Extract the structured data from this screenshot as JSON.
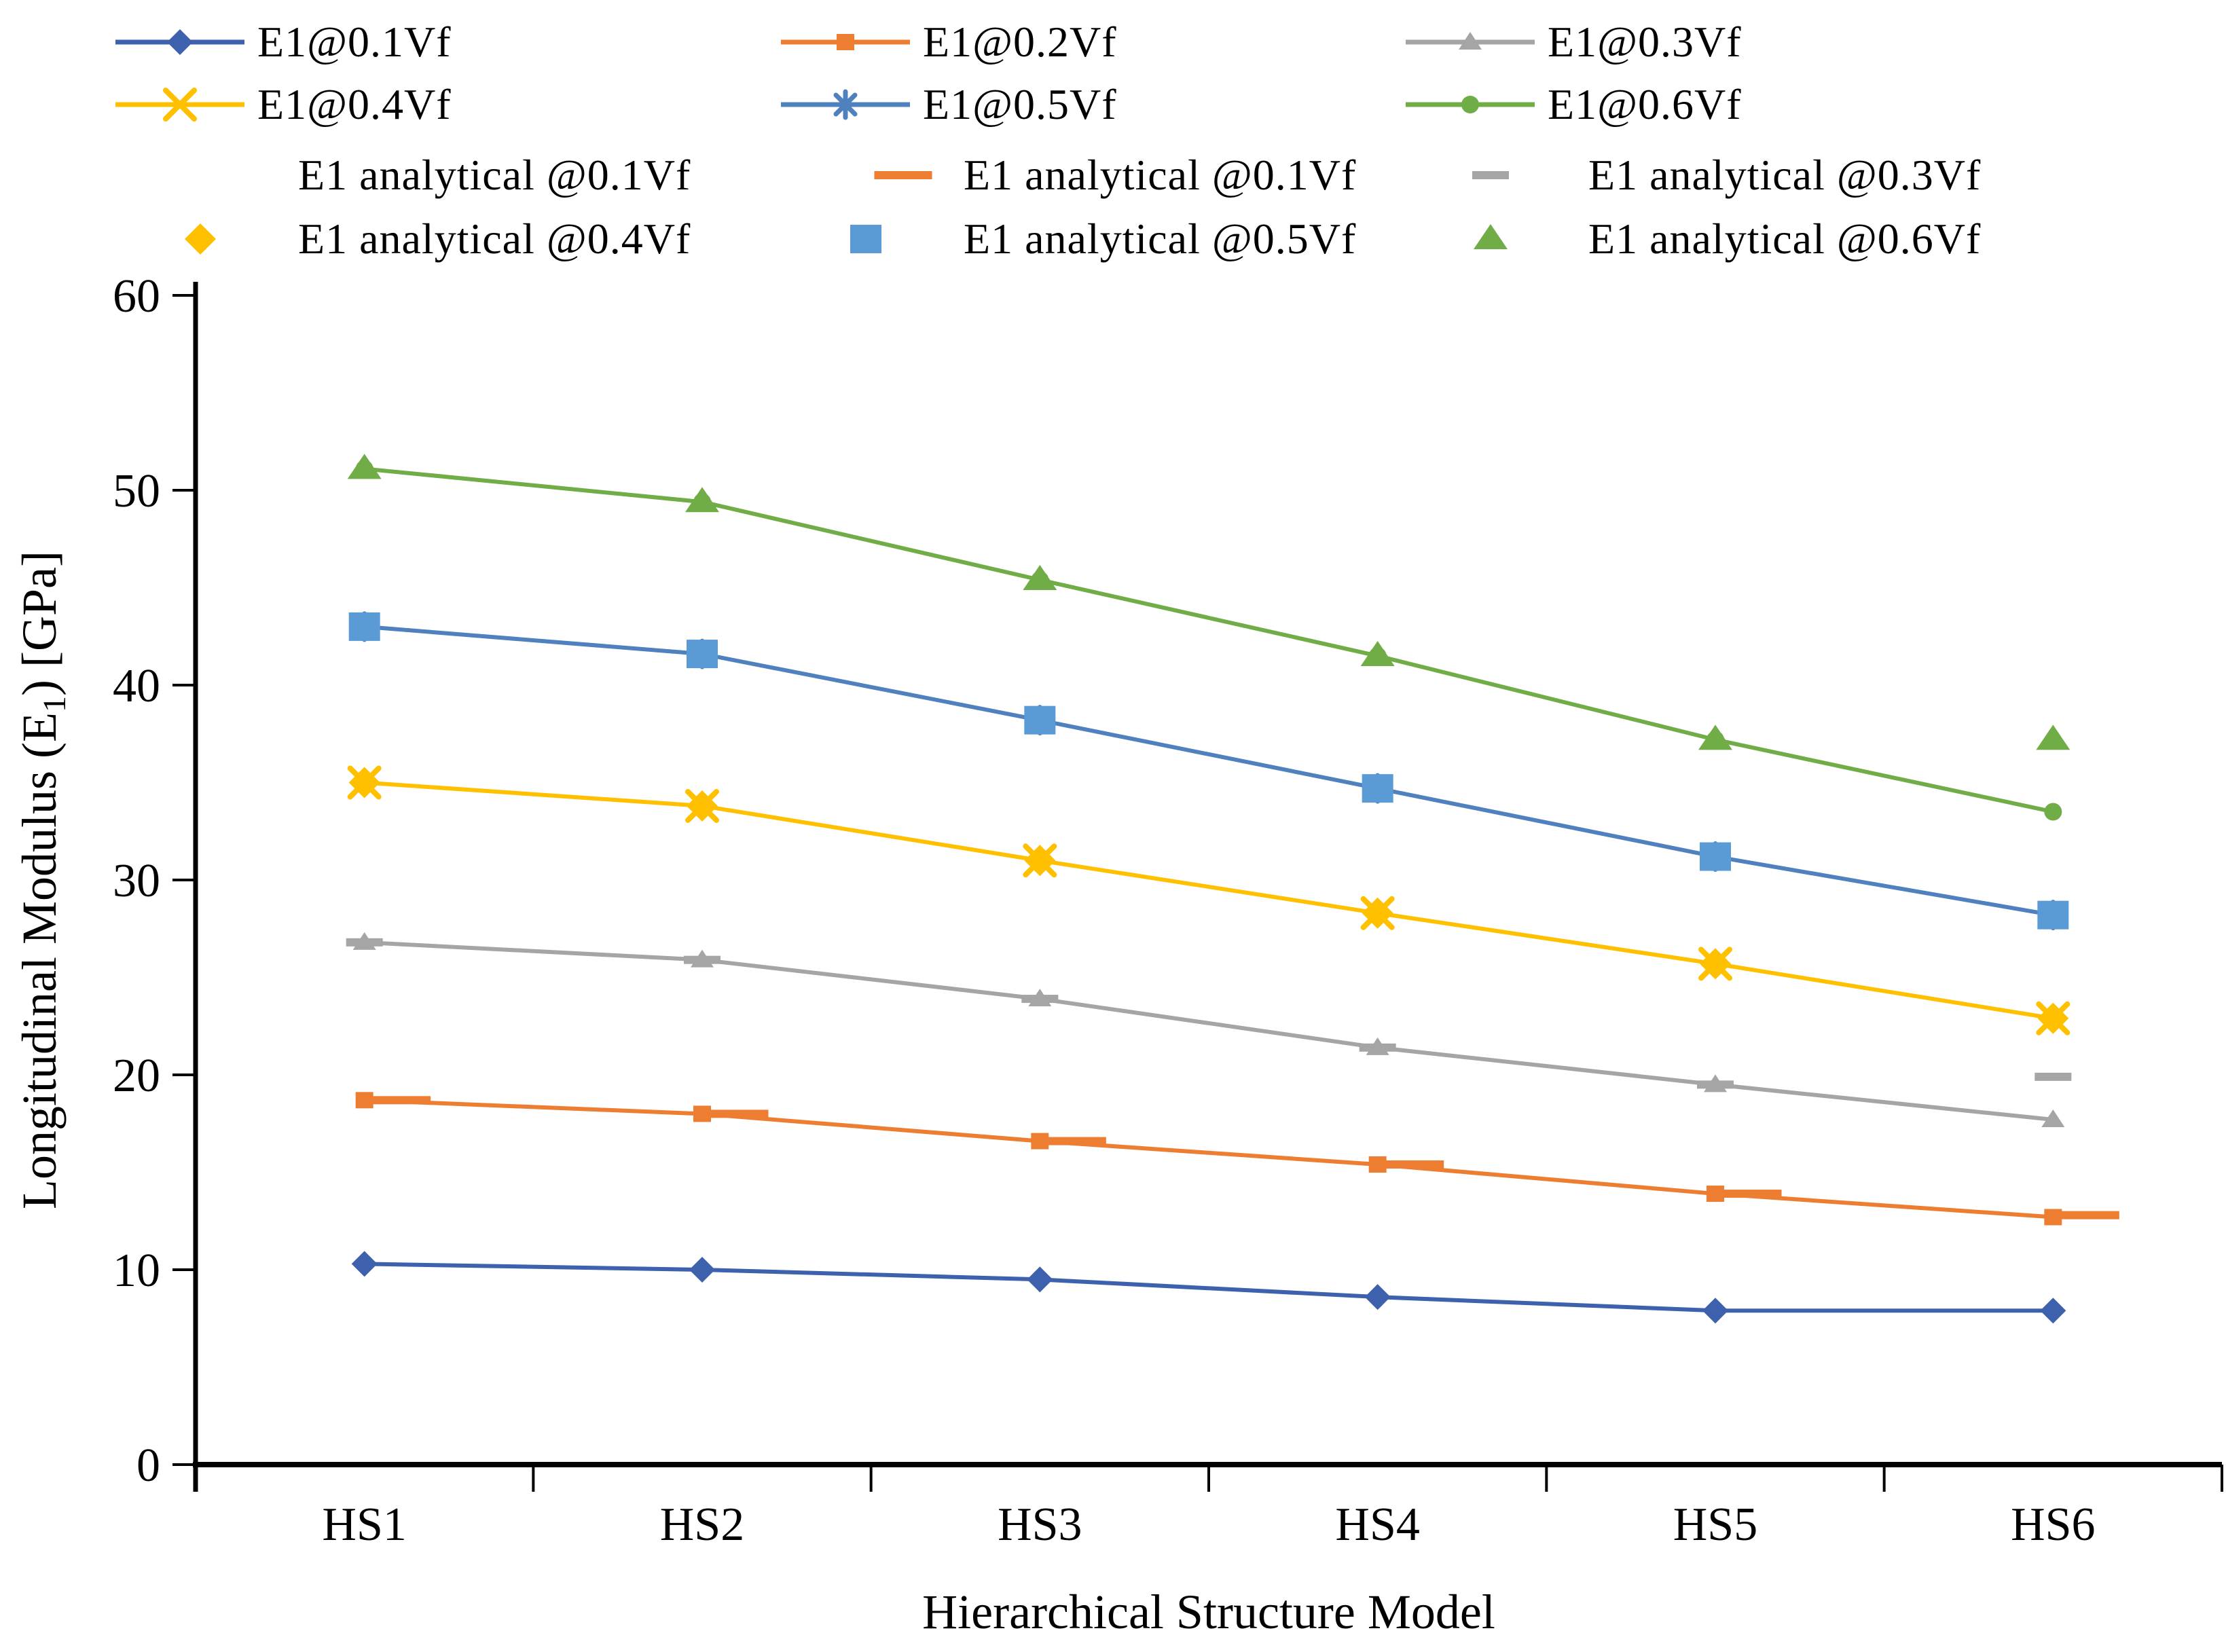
{
  "chart_data": {
    "type": "line",
    "title": "",
    "xlabel": "Hierarchical Structure Model",
    "ylabel": "Longitudinal Modulus (E1) [GPa]",
    "ylabel_parts": {
      "pre": "Longitudinal Modulus (E",
      "sub": "1",
      "post": ") [GPa]"
    },
    "categories": [
      "HS1",
      "HS2",
      "HS3",
      "HS4",
      "HS5",
      "HS6"
    ],
    "ylim": [
      0,
      60
    ],
    "ytick_step": 10,
    "ytick_labels": [
      "0",
      "10",
      "20",
      "30",
      "40",
      "50",
      "60"
    ],
    "grid": false,
    "legend_position": "top",
    "series": [
      {
        "name": "E1@0.1Vf",
        "kind": "fe",
        "type": "line",
        "color": "#3E61AD",
        "marker": "diamond",
        "values": [
          10.3,
          10.0,
          9.5,
          8.6,
          7.9,
          7.9
        ]
      },
      {
        "name": "E1@0.2Vf",
        "kind": "fe",
        "type": "line",
        "color": "#ED7D31",
        "marker": "square",
        "values": [
          18.7,
          18.0,
          16.6,
          15.4,
          13.9,
          12.7
        ]
      },
      {
        "name": "E1@0.3Vf",
        "kind": "fe",
        "type": "line",
        "color": "#A5A5A5",
        "marker": "triangle",
        "values": [
          26.8,
          25.9,
          23.9,
          21.4,
          19.5,
          17.7
        ]
      },
      {
        "name": "E1@0.4Vf",
        "kind": "fe",
        "type": "line",
        "color": "#FFC000",
        "marker": "x",
        "values": [
          35.0,
          33.8,
          31.0,
          28.3,
          25.7,
          22.9
        ]
      },
      {
        "name": "E1@0.5Vf",
        "kind": "fe",
        "type": "line",
        "color": "#4E81BD",
        "marker": "asterisk",
        "values": [
          43.0,
          41.6,
          38.2,
          34.7,
          31.2,
          28.2
        ]
      },
      {
        "name": "E1@0.6Vf",
        "kind": "fe",
        "type": "line",
        "color": "#70AD47",
        "marker": "circle",
        "values": [
          51.1,
          49.4,
          45.4,
          41.5,
          37.2,
          33.5
        ]
      },
      {
        "name": "E1 analytical @0.1Vf",
        "kind": "analytical",
        "type": "markers",
        "color": "#FFFFFF",
        "marker": "none",
        "values": [
          10.3,
          10.0,
          9.5,
          8.6,
          7.9,
          7.9
        ]
      },
      {
        "name": "E1 analytical @0.1Vf",
        "kind": "analytical",
        "type": "markers",
        "color": "#ED7D31",
        "marker": "dash",
        "dash_w": 85,
        "dash_dx": 55,
        "values": [
          18.7,
          18.0,
          16.6,
          15.4,
          13.9,
          12.8
        ]
      },
      {
        "name": "E1 analytical @0.3Vf",
        "kind": "analytical",
        "type": "markers",
        "color": "#A5A5A5",
        "marker": "dash",
        "dash_w": 54,
        "dash_dx": 0,
        "values": [
          26.8,
          25.9,
          23.9,
          21.4,
          19.5,
          19.9
        ]
      },
      {
        "name": "E1 analytical @0.4Vf",
        "kind": "analytical",
        "type": "markers",
        "color": "#FFC000",
        "marker": "diamond",
        "values": [
          35.0,
          33.8,
          31.0,
          28.3,
          25.7,
          22.9
        ]
      },
      {
        "name": "E1 analytical @0.5Vf",
        "kind": "analytical",
        "type": "markers",
        "color": "#5B9BD5",
        "marker": "square",
        "values": [
          43.0,
          41.6,
          38.2,
          34.7,
          31.2,
          28.2
        ]
      },
      {
        "name": "E1 analytical @0.6Vf",
        "kind": "analytical",
        "type": "markers",
        "color": "#70AD47",
        "marker": "triangle",
        "values": [
          51.1,
          49.4,
          45.4,
          41.5,
          37.2,
          37.2
        ]
      }
    ]
  },
  "colors": {
    "axis": "#000000",
    "text": "#000000",
    "background": "#ffffff"
  }
}
